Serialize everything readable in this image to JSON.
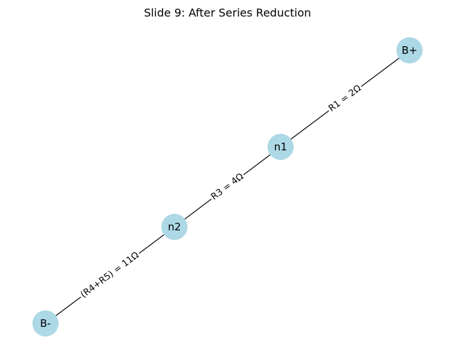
{
  "title": "Slide 9: After Series Reduction",
  "colors": {
    "node_fill": "#add8e6",
    "edge_stroke": "#000000",
    "label_bg": "#ffffff",
    "background": "#ffffff"
  },
  "nodes": [
    {
      "id": "bplus",
      "label": "B+"
    },
    {
      "id": "n1",
      "label": "n1"
    },
    {
      "id": "n2",
      "label": "n2"
    },
    {
      "id": "bminus",
      "label": "B-"
    }
  ],
  "edges": [
    {
      "id": "r1",
      "from": "bplus",
      "to": "n1",
      "label": "R1 = 2Ω"
    },
    {
      "id": "r3",
      "from": "n1",
      "to": "n2",
      "label": "R3 = 4Ω"
    },
    {
      "id": "r45",
      "from": "n2",
      "to": "bminus",
      "label": "(R4+R5) = 11Ω"
    }
  ]
}
